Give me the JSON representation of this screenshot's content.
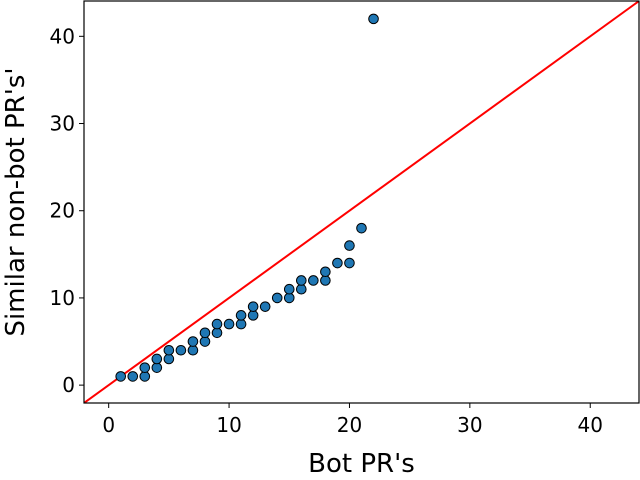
{
  "chart_data": {
    "type": "scatter",
    "title": "",
    "xlabel": "Bot PR's",
    "ylabel": "Similar non-bot PR's'",
    "xlim": [
      -2.05,
      44.05
    ],
    "ylim": [
      -2.05,
      44.05
    ],
    "x_ticks": [
      0,
      10,
      20,
      30,
      40
    ],
    "y_ticks": [
      0,
      10,
      20,
      30,
      40
    ],
    "grid": false,
    "reference_line": {
      "type": "y=x",
      "color": "#ff0000"
    },
    "marker_color": "#1f77b4",
    "marker_edge_color": "#000000",
    "points": [
      {
        "x": 1,
        "y": 1
      },
      {
        "x": 2,
        "y": 1
      },
      {
        "x": 3,
        "y": 1
      },
      {
        "x": 3,
        "y": 2
      },
      {
        "x": 4,
        "y": 2
      },
      {
        "x": 4,
        "y": 3
      },
      {
        "x": 5,
        "y": 3
      },
      {
        "x": 5,
        "y": 4
      },
      {
        "x": 6,
        "y": 4
      },
      {
        "x": 7,
        "y": 4
      },
      {
        "x": 7,
        "y": 5
      },
      {
        "x": 8,
        "y": 5
      },
      {
        "x": 8,
        "y": 6
      },
      {
        "x": 9,
        "y": 6
      },
      {
        "x": 9,
        "y": 7
      },
      {
        "x": 10,
        "y": 7
      },
      {
        "x": 11,
        "y": 7
      },
      {
        "x": 11,
        "y": 8
      },
      {
        "x": 12,
        "y": 8
      },
      {
        "x": 12,
        "y": 9
      },
      {
        "x": 13,
        "y": 9
      },
      {
        "x": 14,
        "y": 10
      },
      {
        "x": 15,
        "y": 10
      },
      {
        "x": 15,
        "y": 11
      },
      {
        "x": 16,
        "y": 11
      },
      {
        "x": 16,
        "y": 12
      },
      {
        "x": 17,
        "y": 12
      },
      {
        "x": 18,
        "y": 12
      },
      {
        "x": 18,
        "y": 13
      },
      {
        "x": 19,
        "y": 14
      },
      {
        "x": 20,
        "y": 14
      },
      {
        "x": 20,
        "y": 16
      },
      {
        "x": 21,
        "y": 18
      },
      {
        "x": 22,
        "y": 42
      }
    ]
  }
}
